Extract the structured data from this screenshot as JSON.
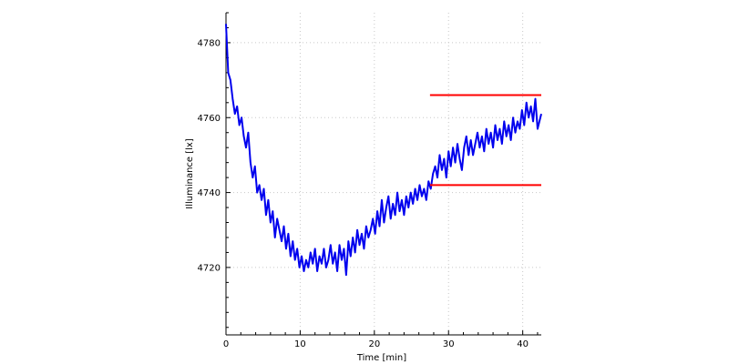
{
  "chart_data": {
    "type": "line",
    "title": "",
    "xlabel": "Time [min]",
    "ylabel": "Illuminance [lx]",
    "xlim": [
      0,
      42.5
    ],
    "ylim": [
      4702,
      4788
    ],
    "x_ticks": [
      0,
      10,
      20,
      30,
      40
    ],
    "y_ticks": [
      4720,
      4740,
      4760,
      4780
    ],
    "x_tick_labels": [
      "0",
      "10",
      "20",
      "30",
      "40"
    ],
    "y_tick_labels": [
      "4720",
      "4740",
      "4760",
      "4780"
    ],
    "grid": true,
    "series": [
      {
        "color": "#0000ee",
        "points": [
          [
            0.0,
            4785
          ],
          [
            0.3,
            4772
          ],
          [
            0.6,
            4770
          ],
          [
            0.9,
            4765
          ],
          [
            1.2,
            4761
          ],
          [
            1.5,
            4763
          ],
          [
            1.8,
            4758
          ],
          [
            2.1,
            4760
          ],
          [
            2.4,
            4755
          ],
          [
            2.7,
            4752
          ],
          [
            3.0,
            4756
          ],
          [
            3.3,
            4748
          ],
          [
            3.6,
            4744
          ],
          [
            3.9,
            4747
          ],
          [
            4.2,
            4740
          ],
          [
            4.5,
            4742
          ],
          [
            4.8,
            4738
          ],
          [
            5.1,
            4741
          ],
          [
            5.4,
            4734
          ],
          [
            5.7,
            4738
          ],
          [
            6.0,
            4732
          ],
          [
            6.3,
            4735
          ],
          [
            6.6,
            4728
          ],
          [
            6.9,
            4733
          ],
          [
            7.2,
            4730
          ],
          [
            7.5,
            4727
          ],
          [
            7.8,
            4731
          ],
          [
            8.1,
            4725
          ],
          [
            8.4,
            4729
          ],
          [
            8.7,
            4723
          ],
          [
            9.0,
            4727
          ],
          [
            9.3,
            4722
          ],
          [
            9.6,
            4725
          ],
          [
            9.9,
            4720
          ],
          [
            10.2,
            4723
          ],
          [
            10.5,
            4719
          ],
          [
            10.8,
            4722
          ],
          [
            11.1,
            4720
          ],
          [
            11.4,
            4724
          ],
          [
            11.7,
            4721
          ],
          [
            12.0,
            4725
          ],
          [
            12.3,
            4719
          ],
          [
            12.6,
            4723
          ],
          [
            12.9,
            4721
          ],
          [
            13.2,
            4725
          ],
          [
            13.5,
            4720
          ],
          [
            13.8,
            4722
          ],
          [
            14.1,
            4726
          ],
          [
            14.4,
            4721
          ],
          [
            14.7,
            4724
          ],
          [
            15.0,
            4719
          ],
          [
            15.3,
            4726
          ],
          [
            15.6,
            4722
          ],
          [
            15.9,
            4725
          ],
          [
            16.2,
            4718
          ],
          [
            16.5,
            4727
          ],
          [
            16.8,
            4723
          ],
          [
            17.1,
            4728
          ],
          [
            17.4,
            4724
          ],
          [
            17.7,
            4730
          ],
          [
            18.0,
            4726
          ],
          [
            18.3,
            4729
          ],
          [
            18.6,
            4725
          ],
          [
            18.9,
            4731
          ],
          [
            19.2,
            4728
          ],
          [
            19.5,
            4730
          ],
          [
            19.8,
            4733
          ],
          [
            20.1,
            4729
          ],
          [
            20.4,
            4735
          ],
          [
            20.7,
            4731
          ],
          [
            21.0,
            4738
          ],
          [
            21.3,
            4732
          ],
          [
            21.6,
            4736
          ],
          [
            21.9,
            4739
          ],
          [
            22.2,
            4733
          ],
          [
            22.5,
            4737
          ],
          [
            22.8,
            4734
          ],
          [
            23.1,
            4740
          ],
          [
            23.4,
            4735
          ],
          [
            23.7,
            4738
          ],
          [
            24.0,
            4734
          ],
          [
            24.3,
            4739
          ],
          [
            24.6,
            4736
          ],
          [
            24.9,
            4740
          ],
          [
            25.2,
            4737
          ],
          [
            25.5,
            4741
          ],
          [
            25.8,
            4738
          ],
          [
            26.1,
            4742
          ],
          [
            26.4,
            4739
          ],
          [
            26.7,
            4741
          ],
          [
            27.0,
            4738
          ],
          [
            27.3,
            4743
          ],
          [
            27.6,
            4741
          ],
          [
            27.9,
            4745
          ],
          [
            28.2,
            4747
          ],
          [
            28.5,
            4744
          ],
          [
            28.8,
            4750
          ],
          [
            29.1,
            4746
          ],
          [
            29.4,
            4749
          ],
          [
            29.7,
            4744
          ],
          [
            30.0,
            4751
          ],
          [
            30.3,
            4747
          ],
          [
            30.6,
            4752
          ],
          [
            30.9,
            4748
          ],
          [
            31.2,
            4753
          ],
          [
            31.5,
            4749
          ],
          [
            31.8,
            4746
          ],
          [
            32.1,
            4752
          ],
          [
            32.4,
            4755
          ],
          [
            32.7,
            4750
          ],
          [
            33.0,
            4754
          ],
          [
            33.3,
            4750
          ],
          [
            33.6,
            4753
          ],
          [
            33.9,
            4756
          ],
          [
            34.2,
            4752
          ],
          [
            34.5,
            4755
          ],
          [
            34.8,
            4751
          ],
          [
            35.1,
            4757
          ],
          [
            35.4,
            4753
          ],
          [
            35.7,
            4756
          ],
          [
            36.0,
            4752
          ],
          [
            36.3,
            4758
          ],
          [
            36.6,
            4754
          ],
          [
            36.9,
            4757
          ],
          [
            37.2,
            4753
          ],
          [
            37.5,
            4759
          ],
          [
            37.8,
            4755
          ],
          [
            38.1,
            4758
          ],
          [
            38.4,
            4754
          ],
          [
            38.7,
            4760
          ],
          [
            39.0,
            4756
          ],
          [
            39.3,
            4759
          ],
          [
            39.6,
            4757
          ],
          [
            39.9,
            4762
          ],
          [
            40.2,
            4758
          ],
          [
            40.5,
            4764
          ],
          [
            40.8,
            4760
          ],
          [
            41.1,
            4763
          ],
          [
            41.4,
            4759
          ],
          [
            41.7,
            4765
          ],
          [
            42.0,
            4757
          ],
          [
            42.5,
            4761
          ]
        ]
      }
    ],
    "reference_lines": [
      {
        "color": "#ff0000",
        "y": 4766,
        "x_range": [
          27.5,
          42.5
        ]
      },
      {
        "color": "#ff0000",
        "y": 4742,
        "x_range": [
          27.5,
          42.5
        ]
      }
    ]
  }
}
